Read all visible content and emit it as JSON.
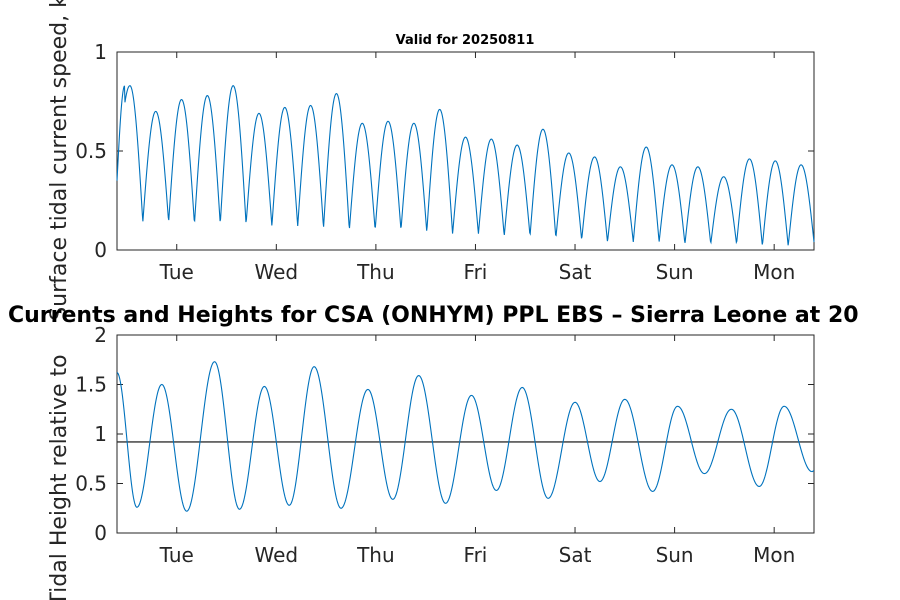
{
  "chart_data": [
    {
      "type": "line",
      "title": "Valid for 20250811",
      "ylabel": "Surface tidal current speed, kn",
      "xlim": [
        0.4,
        7.4
      ],
      "ylim": [
        0,
        1
      ],
      "yticks": [
        0,
        0.5,
        1
      ],
      "ytick_labels": [
        "0",
        "0.5",
        "1"
      ],
      "xticks": [
        1,
        2,
        3,
        4,
        5,
        6,
        7
      ],
      "xtick_labels": [
        "Tue",
        "Wed",
        "Thu",
        "Fri",
        "Sat",
        "Sun",
        "Mon"
      ],
      "series": [
        {
          "color": "#0072BD",
          "peaks": [
            0.83,
            0.7,
            0.76,
            0.78,
            0.83,
            0.69,
            0.72,
            0.73,
            0.79,
            0.64,
            0.65,
            0.64,
            0.71,
            0.57,
            0.56,
            0.53,
            0.61,
            0.49,
            0.47,
            0.42,
            0.52,
            0.43,
            0.42,
            0.37,
            0.46,
            0.45,
            0.43
          ],
          "troughs": [
            0.14,
            0.14,
            0.13,
            0.13,
            0.13,
            0.12,
            0.12,
            0.11,
            0.1,
            0.1,
            0.1,
            0.09,
            0.08,
            0.08,
            0.07,
            0.07,
            0.06,
            0.05,
            0.04,
            0.04,
            0.04,
            0.03,
            0.03,
            0.03,
            0.02,
            0.02,
            0.04
          ],
          "start_value": 0.35
        }
      ]
    },
    {
      "type": "line",
      "title": "Currents and Heights for CSA (ONHYM) PPL EBS  – Sierra Leone at 20",
      "ylabel": "Tidal Height relative to",
      "xlim": [
        0.4,
        7.4
      ],
      "ylim": [
        0,
        2
      ],
      "yticks": [
        0,
        0.5,
        1,
        1.5,
        2
      ],
      "ytick_labels": [
        "0",
        "0.5",
        "1",
        "1.5",
        "2"
      ],
      "xticks": [
        1,
        2,
        3,
        4,
        5,
        6,
        7
      ],
      "xtick_labels": [
        "Tue",
        "Wed",
        "Thu",
        "Fri",
        "Sat",
        "Sun",
        "Mon"
      ],
      "reference_line": {
        "y": 0.92,
        "color": "#333333"
      },
      "series": [
        {
          "color": "#0072BD",
          "start_value": 1.62,
          "extrema": [
            [
              0.6,
              0.26
            ],
            [
              0.85,
              1.5
            ],
            [
              1.1,
              0.22
            ],
            [
              1.38,
              1.73
            ],
            [
              1.63,
              0.24
            ],
            [
              1.88,
              1.48
            ],
            [
              2.13,
              0.28
            ],
            [
              2.38,
              1.68
            ],
            [
              2.65,
              0.25
            ],
            [
              2.92,
              1.45
            ],
            [
              3.17,
              0.34
            ],
            [
              3.43,
              1.59
            ],
            [
              3.7,
              0.3
            ],
            [
              3.96,
              1.39
            ],
            [
              4.21,
              0.43
            ],
            [
              4.47,
              1.47
            ],
            [
              4.73,
              0.35
            ],
            [
              5.0,
              1.32
            ],
            [
              5.25,
              0.52
            ],
            [
              5.5,
              1.35
            ],
            [
              5.78,
              0.42
            ],
            [
              6.03,
              1.28
            ],
            [
              6.3,
              0.6
            ],
            [
              6.57,
              1.25
            ],
            [
              6.85,
              0.47
            ],
            [
              7.1,
              1.28
            ],
            [
              7.38,
              0.62
            ]
          ],
          "end_value": 0.63
        }
      ]
    }
  ]
}
